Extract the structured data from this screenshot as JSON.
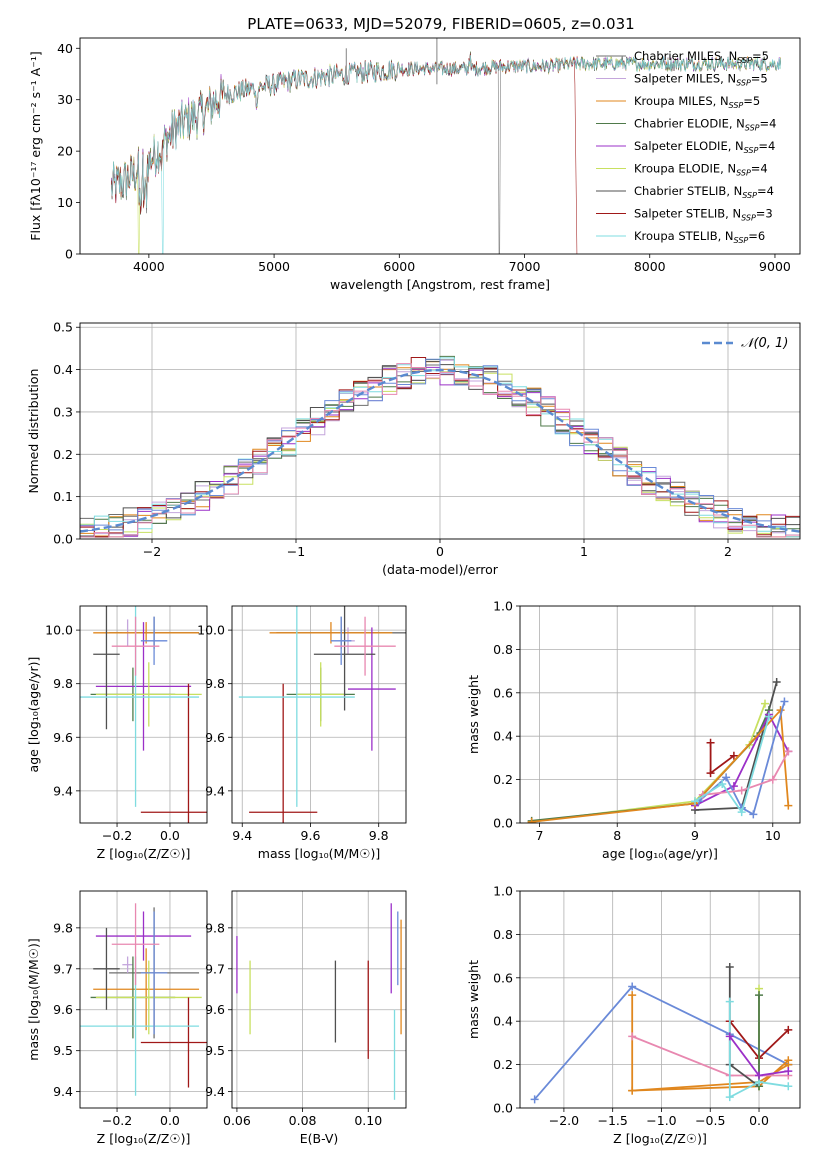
{
  "figure_title": "PLATE=0633, MJD=52079, FIBERID=0605, z=0.031",
  "colors": {
    "Chabrier MILES": "#6f6f6f",
    "Salpeter MILES": "#c4a6dc",
    "Kroupa MILES": "#e0871e",
    "Chabrier ELODIE": "#4f7a4a",
    "Salpeter ELODIE": "#9b30c8",
    "Kroupa ELODIE": "#c8e060",
    "Chabrier STELIB": "#505050",
    "Salpeter STELIB": "#a01818",
    "Kroupa STELIB": "#7fdce0",
    "normal": "#5a8ad0",
    "blue": "#6a8ad8",
    "pink": "#e888b0",
    "grid": "#b0b0b0"
  },
  "chart_data": [
    {
      "id": "spectrum",
      "type": "line",
      "xlabel": "wavelength [Angstrom, rest frame]",
      "ylabel": "Flux [fλ10⁻¹⁷ erg cm⁻² s⁻¹ A⁻¹]",
      "xlim": [
        3450,
        9200
      ],
      "ylim": [
        0,
        42
      ],
      "xticks": [
        "4000",
        "5000",
        "6000",
        "7000",
        "8000",
        "9000"
      ],
      "yticks": [
        "0",
        "10",
        "20",
        "30",
        "40"
      ],
      "grid": false,
      "legend_position": "right",
      "envelope": {
        "x": [
          3700,
          3800,
          3900,
          4000,
          4100,
          4200,
          4300,
          4400,
          4500,
          4600,
          4800,
          5000,
          5200,
          5400,
          5600,
          5800,
          6000,
          6200,
          6400,
          6600,
          6800,
          7000,
          7200,
          7400,
          7600,
          7800,
          8000,
          8200,
          8500,
          8800,
          9050
        ],
        "y": [
          13,
          14,
          16,
          18,
          21,
          24,
          26,
          27,
          29,
          31,
          32,
          33,
          34,
          34.5,
          35,
          35.5,
          36,
          36,
          36,
          36,
          36.5,
          36.5,
          36.5,
          37,
          37,
          37,
          37,
          37,
          37,
          37,
          37
        ]
      },
      "legend": [
        {
          "name": "Chabrier MILES, N",
          "sub": "SSP",
          "val": "=5",
          "color": "Chabrier MILES"
        },
        {
          "name": "Salpeter MILES, N",
          "sub": "SSP",
          "val": "=5",
          "color": "Salpeter MILES"
        },
        {
          "name": "Kroupa MILES, N",
          "sub": "SSP",
          "val": "=5",
          "color": "Kroupa MILES"
        },
        {
          "name": "Chabrier ELODIE, N",
          "sub": "SSP",
          "val": "=4",
          "color": "Chabrier ELODIE"
        },
        {
          "name": "Salpeter ELODIE, N",
          "sub": "SSP",
          "val": "=4",
          "color": "Salpeter ELODIE"
        },
        {
          "name": "Kroupa ELODIE, N",
          "sub": "SSP",
          "val": "=4",
          "color": "Kroupa ELODIE"
        },
        {
          "name": "Chabrier STELIB, N",
          "sub": "SSP",
          "val": "=4",
          "color": "Chabrier STELIB"
        },
        {
          "name": "Salpeter STELIB, N",
          "sub": "SSP",
          "val": "=3",
          "color": "Salpeter STELIB"
        },
        {
          "name": "Kroupa STELIB, N",
          "sub": "SSP",
          "val": "=6",
          "color": "Kroupa STELIB"
        }
      ]
    },
    {
      "id": "residuals",
      "type": "line",
      "xlabel": "(data-model)/error",
      "ylabel": "Normed distribution",
      "xlim": [
        -2.5,
        2.5
      ],
      "ylim": [
        0,
        0.51
      ],
      "xticks": [
        "−2",
        "−1",
        "0",
        "1",
        "2"
      ],
      "yticks": [
        "0.0",
        "0.1",
        "0.2",
        "0.3",
        "0.4",
        "0.5"
      ],
      "grid": true,
      "legend_position": "top-right",
      "legend": [
        {
          "name": "𝒩(0, 1)",
          "color": "normal"
        }
      ],
      "histogram_bins": 50
    },
    {
      "id": "age_vs_Z",
      "type": "scatter",
      "xlabel": "Z [log₁₀(Z/Z☉)]",
      "ylabel": "age  [log₁₀(age/yr)]",
      "xlim": [
        -0.34,
        0.14
      ],
      "ylim": [
        9.28,
        10.09
      ],
      "xticks": [
        "−0.2",
        "0.0"
      ],
      "yticks": [
        "9.4",
        "9.6",
        "9.8",
        "10.0"
      ],
      "grid": true,
      "points": [
        {
          "x": -0.06,
          "y": 9.99,
          "xerr": 0.17,
          "yerr": 0.06,
          "color": "Chabrier MILES"
        },
        {
          "x": -0.16,
          "y": 9.99,
          "xerr": 0.02,
          "yerr": 0.05,
          "color": "Salpeter MILES"
        },
        {
          "x": -0.09,
          "y": 9.99,
          "xerr": 0.2,
          "yerr": 0.04,
          "color": "Kroupa MILES"
        },
        {
          "x": -0.14,
          "y": 9.76,
          "xerr": 0.16,
          "yerr": 0.1,
          "color": "Chabrier ELODIE"
        },
        {
          "x": -0.1,
          "y": 9.79,
          "xerr": 0.18,
          "yerr": 0.24,
          "color": "Salpeter ELODIE"
        },
        {
          "x": -0.08,
          "y": 9.76,
          "xerr": 0.2,
          "yerr": 0.12,
          "color": "Kroupa ELODIE"
        },
        {
          "x": -0.24,
          "y": 9.91,
          "xerr": 0.05,
          "yerr": 0.28,
          "color": "Chabrier STELIB"
        },
        {
          "x": 0.07,
          "y": 9.32,
          "xerr": 0.18,
          "yerr": 0.48,
          "color": "Salpeter STELIB"
        },
        {
          "x": -0.13,
          "y": 9.75,
          "xerr": 0.24,
          "yerr": 0.41,
          "color": "Kroupa STELIB"
        },
        {
          "x": -0.06,
          "y": 9.96,
          "xerr": 0.05,
          "yerr": 0.09,
          "color": "blue"
        },
        {
          "x": -0.13,
          "y": 9.94,
          "xerr": 0.09,
          "yerr": 0.11,
          "color": "pink"
        }
      ]
    },
    {
      "id": "age_vs_mass",
      "type": "scatter",
      "xlabel": "mass [log₁₀(M/M☉)]",
      "ylabel": "",
      "xlim": [
        9.37,
        9.88
      ],
      "ylim": [
        9.28,
        10.09
      ],
      "xticks": [
        "9.4",
        "9.6",
        "9.8"
      ],
      "yticks": [
        "9.4",
        "9.6",
        "9.8",
        "10.0"
      ],
      "grid": true,
      "points": [
        {
          "x": 9.69,
          "y": 9.99,
          "xerr": 0.19,
          "yerr": 0.06,
          "color": "Chabrier MILES"
        },
        {
          "x": 9.71,
          "y": 9.96,
          "xerr": 0.02,
          "yerr": 0.05,
          "color": "Salpeter MILES"
        },
        {
          "x": 9.66,
          "y": 9.99,
          "xerr": 0.18,
          "yerr": 0.04,
          "color": "Kroupa MILES"
        },
        {
          "x": 9.63,
          "y": 9.76,
          "xerr": 0.1,
          "yerr": 0.1,
          "color": "Chabrier ELODIE"
        },
        {
          "x": 9.78,
          "y": 9.78,
          "xerr": 0.07,
          "yerr": 0.23,
          "color": "Salpeter ELODIE"
        },
        {
          "x": 9.63,
          "y": 9.76,
          "xerr": 0.07,
          "yerr": 0.12,
          "color": "Kroupa ELODIE"
        },
        {
          "x": 9.7,
          "y": 9.91,
          "xerr": 0.09,
          "yerr": 0.21,
          "color": "Chabrier STELIB"
        },
        {
          "x": 9.52,
          "y": 9.32,
          "xerr": 0.1,
          "yerr": 0.48,
          "color": "Salpeter STELIB"
        },
        {
          "x": 9.56,
          "y": 9.75,
          "xerr": 0.17,
          "yerr": 0.41,
          "color": "Kroupa STELIB"
        },
        {
          "x": 9.69,
          "y": 9.96,
          "xerr": 0.03,
          "yerr": 0.09,
          "color": "blue"
        },
        {
          "x": 9.76,
          "y": 9.94,
          "xerr": 0.09,
          "yerr": 0.11,
          "color": "pink"
        }
      ]
    },
    {
      "id": "weight_vs_age",
      "type": "line",
      "xlabel": "age  [log₁₀(age/yr)]",
      "ylabel": "mass weight",
      "xlim": [
        6.75,
        10.35
      ],
      "ylim": [
        0,
        1
      ],
      "xticks": [
        "7",
        "8",
        "9",
        "10"
      ],
      "yticks": [
        "0.0",
        "0.2",
        "0.4",
        "0.6",
        "0.8",
        "1.0"
      ],
      "grid": true,
      "series": [
        {
          "color": "Salpeter STELIB",
          "x": [
            9.2,
            9.2,
            9.5
          ],
          "y": [
            0.37,
            0.23,
            0.31
          ]
        },
        {
          "color": "Chabrier STELIB",
          "x": [
            9.0,
            9.6,
            10.05
          ],
          "y": [
            0.06,
            0.07,
            0.65
          ]
        },
        {
          "color": "Kroupa ELODIE",
          "x": [
            6.9,
            9.0,
            9.7,
            9.9
          ],
          "y": [
            0.005,
            0.1,
            0.36,
            0.55
          ]
        },
        {
          "color": "Chabrier ELODIE",
          "x": [
            6.9,
            9.0,
            9.8,
            9.95
          ],
          "y": [
            0.01,
            0.09,
            0.4,
            0.52
          ]
        },
        {
          "color": "Salpeter ELODIE",
          "x": [
            9.0,
            9.5,
            9.95,
            10.2
          ],
          "y": [
            0.08,
            0.17,
            0.5,
            0.33
          ]
        },
        {
          "color": "Kroupa MILES",
          "x": [
            6.9,
            9.0,
            10.1,
            10.2
          ],
          "y": [
            0.005,
            0.09,
            0.52,
            0.08
          ]
        },
        {
          "color": "blue",
          "x": [
            9.05,
            9.4,
            9.6,
            9.75,
            10.15
          ],
          "y": [
            0.1,
            0.21,
            0.07,
            0.04,
            0.56
          ]
        },
        {
          "color": "pink",
          "x": [
            9.1,
            9.6,
            10.0,
            10.2
          ],
          "y": [
            0.13,
            0.15,
            0.2,
            0.33
          ]
        },
        {
          "color": "Kroupa STELIB",
          "x": [
            9.0,
            9.35,
            9.6,
            9.95
          ],
          "y": [
            0.1,
            0.18,
            0.05,
            0.49
          ]
        }
      ]
    },
    {
      "id": "mass_vs_Z",
      "type": "scatter",
      "xlabel": "Z [log₁₀(Z/Z☉)]",
      "ylabel": "mass [log₁₀(M/M☉)]",
      "xlim": [
        -0.34,
        0.14
      ],
      "ylim": [
        9.36,
        9.89
      ],
      "xticks": [
        "−0.2",
        "0.0"
      ],
      "yticks": [
        "9.4",
        "9.5",
        "9.6",
        "9.7",
        "9.8"
      ],
      "grid": true,
      "points": [
        {
          "x": -0.06,
          "y": 9.69,
          "xerr": 0.17,
          "yerr": 0.16,
          "color": "Chabrier MILES"
        },
        {
          "x": -0.16,
          "y": 9.71,
          "xerr": 0.02,
          "yerr": 0.02,
          "color": "Salpeter MILES"
        },
        {
          "x": -0.09,
          "y": 9.65,
          "xerr": 0.2,
          "yerr": 0.1,
          "color": "Kroupa MILES"
        },
        {
          "x": -0.14,
          "y": 9.63,
          "xerr": 0.16,
          "yerr": 0.1,
          "color": "Chabrier ELODIE"
        },
        {
          "x": -0.1,
          "y": 9.78,
          "xerr": 0.18,
          "yerr": 0.06,
          "color": "Salpeter ELODIE"
        },
        {
          "x": -0.08,
          "y": 9.63,
          "xerr": 0.2,
          "yerr": 0.09,
          "color": "Kroupa ELODIE"
        },
        {
          "x": -0.24,
          "y": 9.7,
          "xerr": 0.05,
          "yerr": 0.1,
          "color": "Chabrier STELIB"
        },
        {
          "x": 0.07,
          "y": 9.52,
          "xerr": 0.18,
          "yerr": 0.11,
          "color": "Salpeter STELIB"
        },
        {
          "x": -0.13,
          "y": 9.56,
          "xerr": 0.24,
          "yerr": 0.17,
          "color": "Kroupa STELIB"
        },
        {
          "x": -0.06,
          "y": 9.69,
          "xerr": 0.05,
          "yerr": 0.15,
          "color": "blue"
        },
        {
          "x": -0.13,
          "y": 9.76,
          "xerr": 0.09,
          "yerr": 0.1,
          "color": "pink"
        }
      ]
    },
    {
      "id": "mass_vs_EBV",
      "type": "scatter",
      "xlabel": "E(B-V)",
      "ylabel": "",
      "xlim": [
        0.0585,
        0.1115
      ],
      "ylim": [
        9.36,
        9.89
      ],
      "xticks": [
        "0.06",
        "0.08",
        "0.10"
      ],
      "yticks": [
        "9.4",
        "9.5",
        "9.6",
        "9.7",
        "9.8"
      ],
      "grid": true,
      "points": [
        {
          "x": 0.06,
          "y": 9.71,
          "yerr": 0.07,
          "color": "Salpeter ELODIE"
        },
        {
          "x": 0.064,
          "y": 9.63,
          "yerr": 0.09,
          "color": "Kroupa ELODIE"
        },
        {
          "x": 0.09,
          "y": 9.62,
          "yerr": 0.1,
          "color": "Chabrier STELIB"
        },
        {
          "x": 0.1,
          "y": 9.6,
          "yerr": 0.12,
          "color": "Salpeter STELIB"
        },
        {
          "x": 0.107,
          "y": 9.75,
          "yerr": 0.11,
          "color": "Salpeter ELODIE"
        },
        {
          "x": 0.108,
          "y": 9.49,
          "yerr": 0.11,
          "color": "Kroupa STELIB"
        },
        {
          "x": 0.109,
          "y": 9.75,
          "yerr": 0.09,
          "color": "blue"
        },
        {
          "x": 0.11,
          "y": 9.68,
          "yerr": 0.14,
          "color": "Kroupa MILES"
        }
      ]
    },
    {
      "id": "weight_vs_Z",
      "type": "line",
      "xlabel": "Z [log₁₀(Z/Z☉)]",
      "ylabel": "mass weight",
      "xlim": [
        -2.45,
        0.42
      ],
      "ylim": [
        0,
        1
      ],
      "xticks": [
        "−2.0",
        "−1.5",
        "−1.0",
        "−0.5",
        "0.0"
      ],
      "yticks": [
        "0.0",
        "0.2",
        "0.4",
        "0.6",
        "0.8",
        "1.0"
      ],
      "grid": true,
      "series": [
        {
          "color": "blue",
          "x": [
            -2.3,
            -1.3,
            -0.3,
            0.3
          ],
          "y": [
            0.04,
            0.56,
            0.34,
            0.2
          ]
        },
        {
          "color": "Kroupa MILES",
          "x": [
            -1.3,
            -1.3,
            0.0,
            0.3
          ],
          "y": [
            0.52,
            0.08,
            0.1,
            0.22
          ]
        },
        {
          "color": "Kroupa MILES",
          "x": [
            -1.3,
            0.0,
            0.3
          ],
          "y": [
            0.08,
            0.12,
            0.2
          ]
        },
        {
          "color": "pink",
          "x": [
            -1.3,
            -0.3,
            0.0,
            0.3
          ],
          "y": [
            0.33,
            0.15,
            0.15,
            0.15
          ]
        },
        {
          "color": "Chabrier STELIB",
          "x": [
            -0.3,
            -0.3,
            0.0
          ],
          "y": [
            0.65,
            0.2,
            0.1
          ]
        },
        {
          "color": "Salpeter STELIB",
          "x": [
            -0.3,
            0.0,
            0.3
          ],
          "y": [
            0.4,
            0.23,
            0.36
          ]
        },
        {
          "color": "Kroupa ELODIE",
          "x": [
            0.0,
            0.0
          ],
          "y": [
            0.55,
            0.1
          ]
        },
        {
          "color": "Chabrier ELODIE",
          "x": [
            0.0,
            0.0
          ],
          "y": [
            0.52,
            0.1
          ]
        },
        {
          "color": "Kroupa STELIB",
          "x": [
            -0.3,
            -0.3,
            0.0,
            0.3
          ],
          "y": [
            0.49,
            0.05,
            0.12,
            0.1
          ]
        },
        {
          "color": "Salpeter ELODIE",
          "x": [
            -0.3,
            0.0,
            0.3
          ],
          "y": [
            0.33,
            0.15,
            0.17
          ]
        }
      ]
    }
  ]
}
